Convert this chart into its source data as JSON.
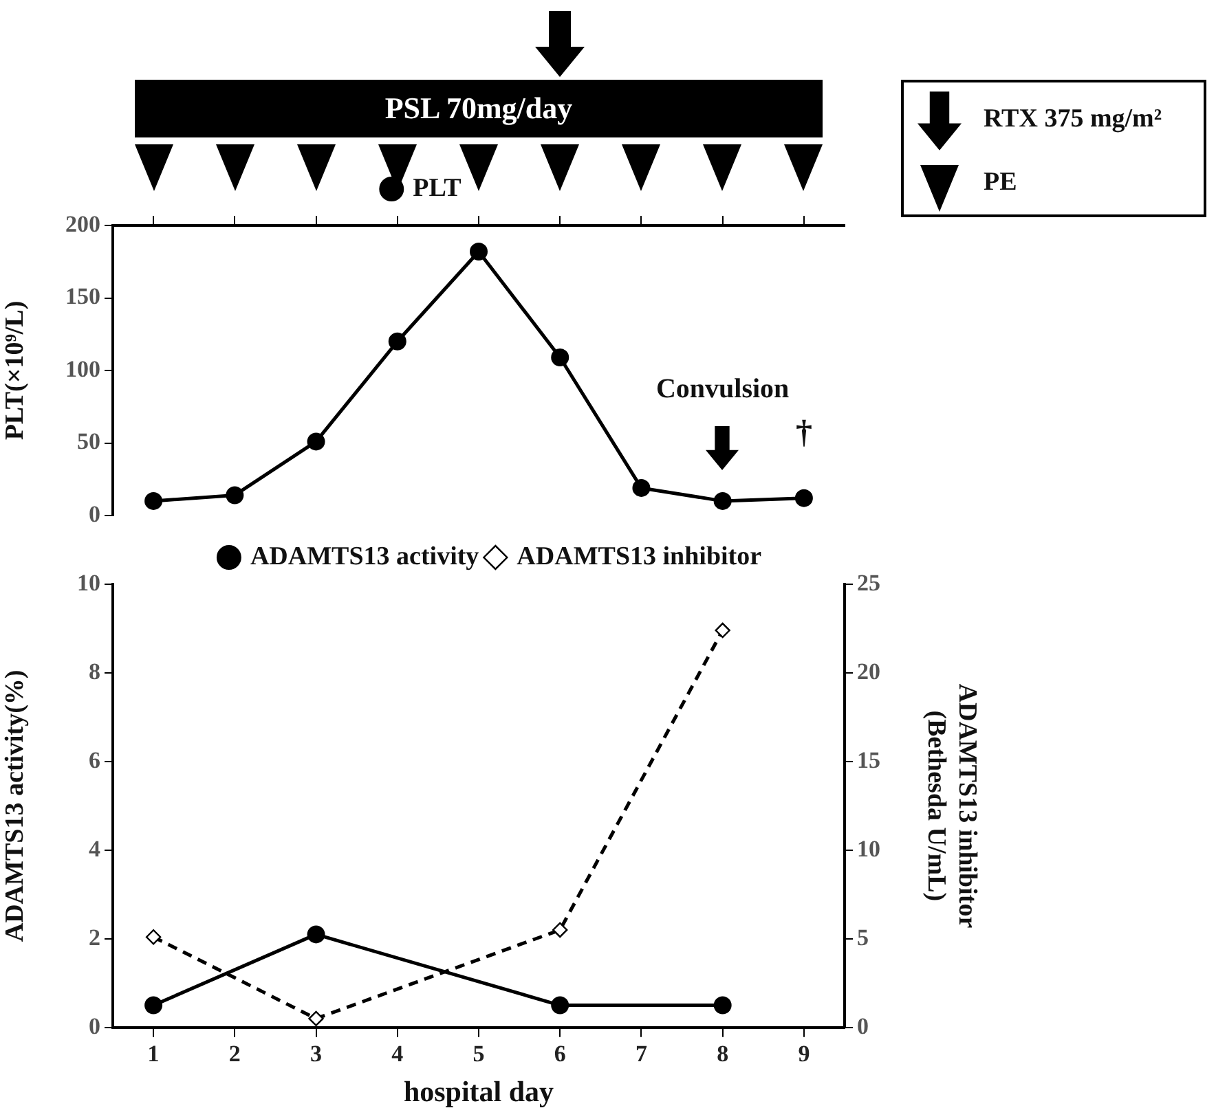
{
  "chart_data": [
    {
      "type": "line",
      "ylabel": "PLT(×10⁹/L)",
      "categories": [
        "1",
        "2",
        "3",
        "4",
        "5",
        "6",
        "7",
        "8",
        "9"
      ],
      "series": [
        {
          "name": "PLT",
          "color": "#000000",
          "values": [
            10,
            14,
            51,
            120,
            182,
            109,
            19,
            10,
            12
          ],
          "marker": "circle",
          "line_style": "solid"
        }
      ],
      "ylim": [
        0,
        200
      ],
      "yticks": [
        0,
        50,
        100,
        150,
        200
      ],
      "grid": false,
      "legend": "top",
      "tick_labels": "y",
      "annotations": [
        "PSL 70mg/day",
        "RTX 375 mg/m²",
        "PE",
        "Convulsion",
        "†"
      ]
    },
    {
      "type": "line",
      "xlabel": "hospital day",
      "ylabel": "ADAMTS13 activity(%)",
      "y2label": "ADAMTS13 inhibitor\n(Bethesda U/mL)",
      "categories": [
        "1",
        "2",
        "3",
        "4",
        "5",
        "6",
        "7",
        "8",
        "9"
      ],
      "series": [
        {
          "name": "ADAMTS13 activity",
          "color": "#000000",
          "values": [
            0.5,
            null,
            2.1,
            null,
            null,
            0.5,
            null,
            0.5,
            null
          ],
          "marker": "circle",
          "line_style": "solid"
        },
        {
          "name": "ADAMTS13 inhibitor",
          "color": "#000000",
          "values": [
            5.1,
            null,
            0.5,
            null,
            null,
            5.5,
            null,
            22.4,
            null
          ],
          "axis": "y2",
          "marker": "diamond",
          "line_style": "dashed"
        }
      ],
      "ylim": [
        0,
        10
      ],
      "yticks": [
        0,
        2,
        4,
        6,
        8,
        10
      ],
      "y2lim": [
        0,
        25
      ],
      "y2ticks": [
        0,
        5,
        10,
        15,
        20,
        25
      ],
      "grid": false,
      "legend": "top"
    }
  ]
}
